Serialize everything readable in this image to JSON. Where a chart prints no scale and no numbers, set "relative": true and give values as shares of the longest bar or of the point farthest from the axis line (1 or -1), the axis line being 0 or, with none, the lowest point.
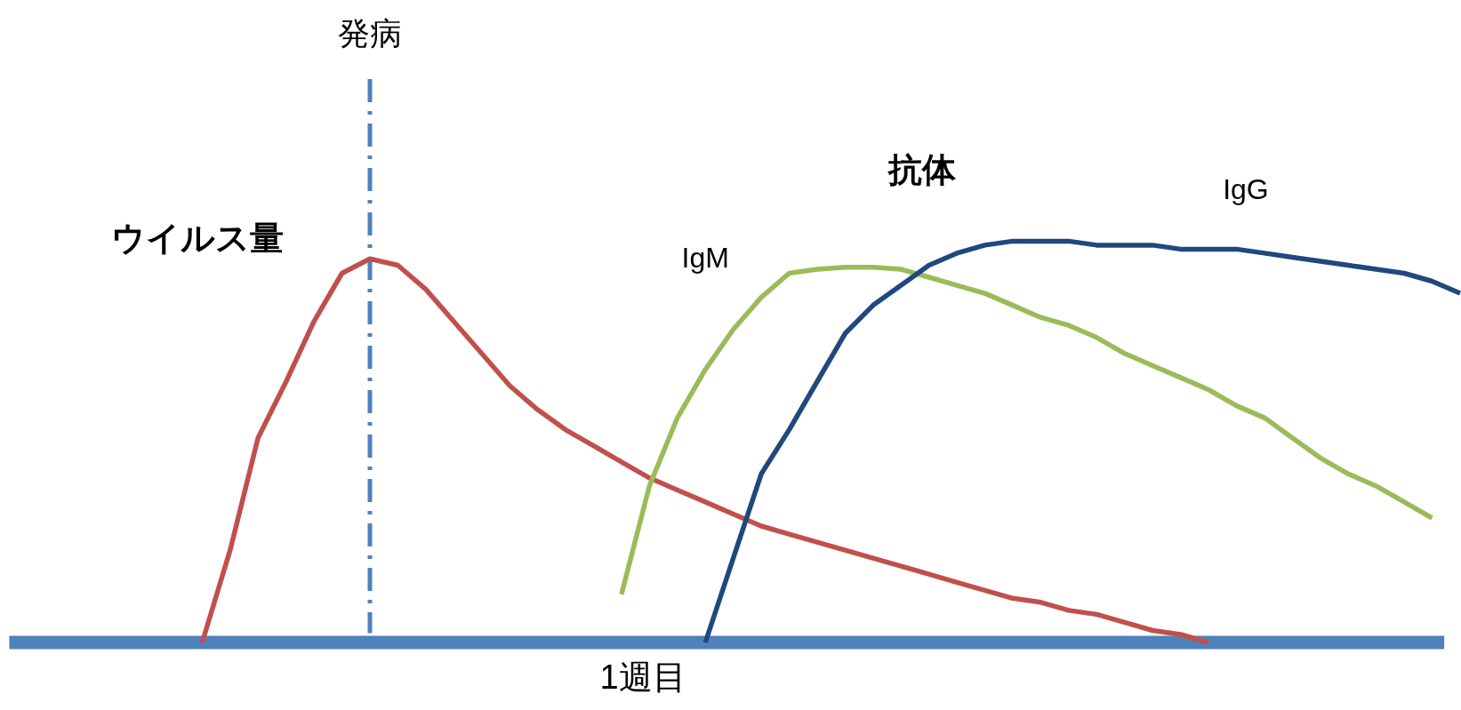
{
  "chart_data": {
    "type": "line",
    "relative": true,
    "xlabel": "1週目",
    "categories": [
      null,
      null,
      null,
      null,
      null,
      null,
      null,
      null,
      null,
      null,
      null,
      null,
      null,
      null,
      null,
      null,
      null,
      null,
      null,
      null,
      null,
      null,
      null,
      null,
      null,
      null,
      null,
      null,
      null,
      null,
      null,
      null,
      null,
      null,
      null,
      null,
      null,
      null,
      null,
      null,
      null,
      null,
      null,
      null,
      null,
      null,
      null,
      null,
      null,
      null,
      null,
      null,
      null
    ],
    "series": [
      {
        "name": "ウイルス量",
        "color": "#c0504d",
        "values": [
          null,
          null,
          null,
          null,
          null,
          null,
          null,
          0,
          0.23,
          0.51,
          0.65,
          0.8,
          0.92,
          0.956,
          0.94,
          0.88,
          0.8,
          0.72,
          0.64,
          0.58,
          0.53,
          0.49,
          0.45,
          0.41,
          0.38,
          0.35,
          0.32,
          0.29,
          0.27,
          0.25,
          0.23,
          0.21,
          0.19,
          0.17,
          0.15,
          0.13,
          0.11,
          0.1,
          0.08,
          0.07,
          0.05,
          0.03,
          0.02,
          0,
          null,
          null,
          null,
          null,
          null,
          null,
          null,
          null,
          null
        ]
      },
      {
        "name": "IgM",
        "color": "#9bbb59",
        "values": [
          null,
          null,
          null,
          null,
          null,
          null,
          null,
          null,
          null,
          null,
          null,
          null,
          null,
          null,
          null,
          null,
          null,
          null,
          null,
          null,
          null,
          null,
          0.12,
          0.39,
          0.56,
          0.68,
          0.78,
          0.86,
          0.92,
          0.93,
          0.935,
          0.935,
          0.93,
          0.91,
          0.89,
          0.87,
          0.84,
          0.81,
          0.79,
          0.76,
          0.72,
          0.69,
          0.66,
          0.63,
          0.59,
          0.56,
          0.51,
          0.46,
          0.42,
          0.39,
          0.35,
          0.31,
          null
        ]
      },
      {
        "name": "IgG",
        "color": "#1f497d",
        "values": [
          null,
          null,
          null,
          null,
          null,
          null,
          null,
          null,
          null,
          null,
          null,
          null,
          null,
          null,
          null,
          null,
          null,
          null,
          null,
          null,
          null,
          null,
          null,
          null,
          null,
          0,
          0.21,
          0.42,
          0.53,
          0.65,
          0.77,
          0.84,
          0.89,
          0.94,
          0.97,
          0.99,
          1,
          1,
          1,
          0.99,
          0.99,
          0.99,
          0.98,
          0.98,
          0.98,
          0.97,
          0.96,
          0.95,
          0.94,
          0.93,
          0.92,
          0.9,
          0.87
        ]
      }
    ],
    "annotations": [
      "発病",
      "抗体"
    ],
    "legend": false
  }
}
